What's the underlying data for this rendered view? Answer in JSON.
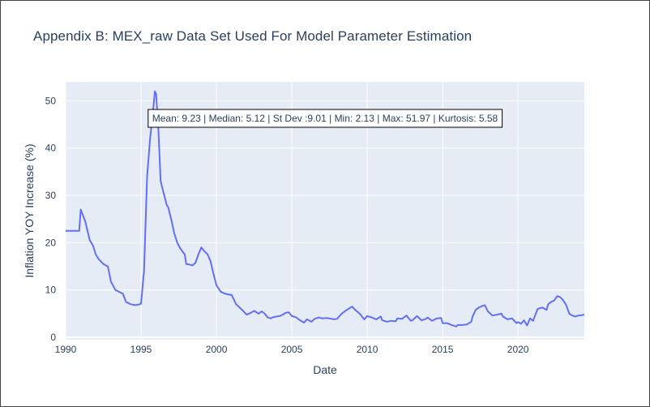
{
  "chart_data": {
    "type": "line",
    "title": "Appendix B: MEX_raw Data Set Used For Model Parameter Estimation",
    "xlabel": "Date",
    "ylabel": "Inflation YOY Increase (%)",
    "xlim": [
      1990,
      2024.4
    ],
    "ylim": [
      -0.5,
      54
    ],
    "x_ticks": [
      1990,
      1995,
      2000,
      2005,
      2010,
      2015,
      2020
    ],
    "y_ticks": [
      0,
      10,
      20,
      30,
      40,
      50
    ],
    "grid": true,
    "annotation": "Mean: 9.23 | Median: 5.12 | St Dev :9.01 | Min: 2.13 | Max: 51.97 | Kurtosis: 5.58",
    "line_color": "#636efa",
    "series": [
      {
        "x": [
          1990.0,
          1990.9,
          1991.0,
          1991.3,
          1991.6,
          1991.8,
          1992.0,
          1992.2,
          1992.5,
          1992.8,
          1993.0,
          1993.3,
          1993.5,
          1993.8,
          1994.0,
          1994.3,
          1994.6,
          1994.8,
          1995.0,
          1995.2,
          1995.4,
          1995.6,
          1995.8,
          1995.92,
          1996.0,
          1996.15,
          1996.3,
          1996.5,
          1996.7,
          1996.8,
          1997.0,
          1997.2,
          1997.4,
          1997.6,
          1997.9,
          1998.0,
          1998.2,
          1998.4,
          1998.6,
          1998.8,
          1999.0,
          1999.2,
          1999.4,
          1999.6,
          1999.8,
          2000.0,
          2000.3,
          2000.6,
          2000.9,
          2001.0,
          2001.3,
          2001.5,
          2001.8,
          2002.0,
          2002.3,
          2002.5,
          2002.8,
          2003.0,
          2003.2,
          2003.4,
          2003.6,
          2003.8,
          2004.0,
          2004.2,
          2004.4,
          2004.6,
          2004.8,
          2005.0,
          2005.3,
          2005.5,
          2005.8,
          2006.0,
          2006.3,
          2006.5,
          2006.8,
          2007.0,
          2007.3,
          2007.5,
          2007.8,
          2008.0,
          2008.3,
          2008.6,
          2008.9,
          2009.0,
          2009.2,
          2009.5,
          2009.8,
          2010.0,
          2010.3,
          2010.6,
          2010.9,
          2011.0,
          2011.3,
          2011.6,
          2011.9,
          2012.0,
          2012.3,
          2012.6,
          2012.9,
          2013.0,
          2013.3,
          2013.6,
          2013.9,
          2014.0,
          2014.3,
          2014.6,
          2014.9,
          2015.0,
          2015.3,
          2015.6,
          2015.9,
          2016.0,
          2016.3,
          2016.6,
          2016.9,
          2017.0,
          2017.2,
          2017.4,
          2017.6,
          2017.8,
          2018.0,
          2018.3,
          2018.6,
          2018.9,
          2019.0,
          2019.3,
          2019.6,
          2019.9,
          2020.0,
          2020.2,
          2020.4,
          2020.6,
          2020.8,
          2021.0,
          2021.3,
          2021.6,
          2021.9,
          2022.0,
          2022.2,
          2022.4,
          2022.6,
          2022.8,
          2023.0,
          2023.2,
          2023.4,
          2023.6,
          2023.8,
          2024.0,
          2024.2,
          2024.4
        ],
        "y": [
          22.5,
          22.5,
          27.0,
          24.5,
          20.5,
          19.5,
          17.5,
          16.5,
          15.5,
          15.0,
          11.8,
          10.0,
          9.7,
          9.2,
          7.5,
          7.0,
          6.8,
          6.9,
          7.1,
          14.0,
          34.0,
          42.0,
          48.0,
          51.97,
          51.5,
          44.0,
          33.0,
          30.5,
          28.0,
          27.5,
          25.0,
          22.0,
          20.0,
          18.8,
          17.5,
          15.5,
          15.4,
          15.2,
          15.7,
          17.5,
          19.0,
          18.2,
          17.6,
          16.2,
          13.5,
          11.0,
          9.6,
          9.2,
          9.0,
          9.0,
          7.0,
          6.4,
          5.5,
          4.8,
          5.2,
          5.6,
          5.0,
          5.5,
          5.0,
          4.2,
          4.0,
          4.3,
          4.4,
          4.5,
          4.8,
          5.2,
          5.3,
          4.5,
          4.2,
          3.7,
          3.1,
          3.8,
          3.3,
          3.9,
          4.2,
          4.0,
          4.1,
          4.0,
          3.8,
          3.9,
          5.0,
          5.7,
          6.3,
          6.5,
          5.8,
          5.0,
          3.8,
          4.5,
          4.2,
          3.8,
          4.4,
          3.6,
          3.3,
          3.5,
          3.4,
          4.0,
          3.9,
          4.6,
          3.5,
          3.6,
          4.5,
          3.6,
          3.9,
          4.2,
          3.5,
          4.0,
          4.1,
          3.0,
          3.0,
          2.6,
          2.3,
          2.6,
          2.6,
          2.7,
          3.3,
          4.5,
          5.8,
          6.3,
          6.6,
          6.8,
          5.5,
          4.6,
          4.8,
          5.0,
          4.4,
          3.8,
          4.0,
          3.0,
          3.2,
          2.9,
          3.6,
          2.5,
          4.0,
          3.5,
          6.0,
          6.3,
          5.8,
          7.0,
          7.5,
          7.8,
          8.7,
          8.5,
          7.8,
          6.8,
          5.0,
          4.6,
          4.4,
          4.6,
          4.7,
          4.8
        ]
      }
    ]
  }
}
